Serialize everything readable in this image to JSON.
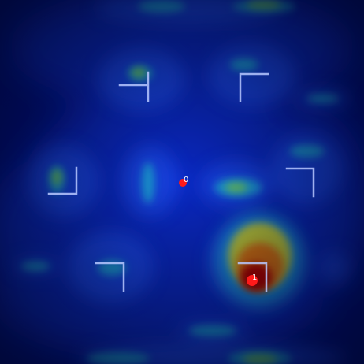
{
  "colors": {
    "background": "#000a3c",
    "field_deep": "#00108a",
    "field_mid": "#0a2fd0",
    "glow_cyan": "#1fb8d8",
    "glow_green": "#7ed24a",
    "glow_yellow": "#d8d020",
    "hot_orange": "#d86010",
    "hot_red": "#b00000",
    "keypoint": "#ff1a1a",
    "bracket": "#b8c8ff"
  },
  "keypoints": [
    {
      "label": "0"
    },
    {
      "label": "1"
    }
  ],
  "brackets": [
    {
      "name": "bracket-top-left"
    },
    {
      "name": "bracket-top-right"
    },
    {
      "name": "bracket-mid-left"
    },
    {
      "name": "bracket-mid-right"
    },
    {
      "name": "bracket-bottom-left"
    },
    {
      "name": "bracket-bottom-right"
    }
  ]
}
